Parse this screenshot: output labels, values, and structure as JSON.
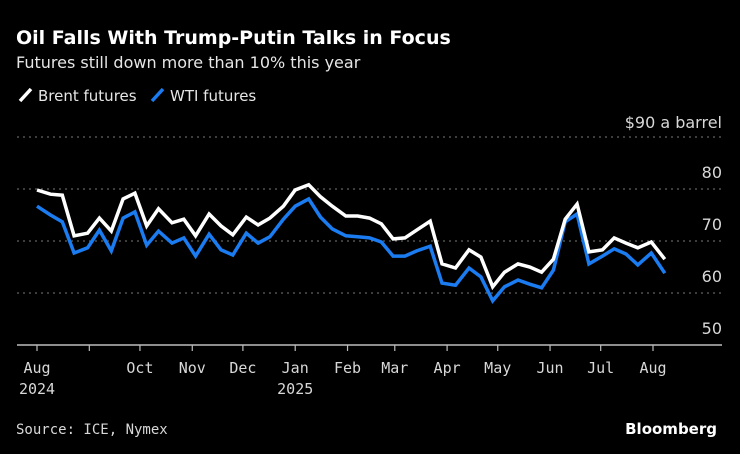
{
  "chart_data": {
    "type": "line",
    "title": "Oil Falls With Trump-Putin Talks in Focus",
    "subtitle": "Futures still down more than 10% this year",
    "ylabel": "$90 a barrel",
    "ylim": [
      50,
      90
    ],
    "yticks": [
      50,
      60,
      70,
      80
    ],
    "ytick_top": 90,
    "grid": true,
    "legend_position": "top-left",
    "x_ticks": [
      {
        "date": "2024-08-01",
        "label": "Aug",
        "year": "2024"
      },
      {
        "date": "2024-09-01",
        "label": "",
        "year": ""
      },
      {
        "date": "2024-10-01",
        "label": "Oct",
        "year": ""
      },
      {
        "date": "2024-11-01",
        "label": "Nov",
        "year": ""
      },
      {
        "date": "2024-12-01",
        "label": "Dec",
        "year": ""
      },
      {
        "date": "2025-01-01",
        "label": "Jan",
        "year": "2025"
      },
      {
        "date": "2025-02-01",
        "label": "Feb",
        "year": ""
      },
      {
        "date": "2025-03-01",
        "label": "Mar",
        "year": ""
      },
      {
        "date": "2025-04-01",
        "label": "Apr",
        "year": ""
      },
      {
        "date": "2025-05-01",
        "label": "May",
        "year": ""
      },
      {
        "date": "2025-06-01",
        "label": "Jun",
        "year": ""
      },
      {
        "date": "2025-07-01",
        "label": "Jul",
        "year": ""
      },
      {
        "date": "2025-08-01",
        "label": "Aug",
        "year": ""
      }
    ],
    "x": [
      "2024-08-01",
      "2024-08-09",
      "2024-08-16",
      "2024-08-23",
      "2024-08-31",
      "2024-09-07",
      "2024-09-14",
      "2024-09-21",
      "2024-09-28",
      "2024-10-05",
      "2024-10-12",
      "2024-10-20",
      "2024-10-27",
      "2024-11-03",
      "2024-11-11",
      "2024-11-18",
      "2024-11-25",
      "2024-12-03",
      "2024-12-10",
      "2024-12-17",
      "2024-12-25",
      "2025-01-01",
      "2025-01-09",
      "2025-01-16",
      "2025-01-23",
      "2025-01-31",
      "2025-02-07",
      "2025-02-14",
      "2025-02-21",
      "2025-02-28",
      "2025-03-07",
      "2025-03-14",
      "2025-03-22",
      "2025-03-29",
      "2025-04-06",
      "2025-04-14",
      "2025-04-21",
      "2025-04-28",
      "2025-05-05",
      "2025-05-13",
      "2025-05-20",
      "2025-05-27",
      "2025-06-03",
      "2025-06-10",
      "2025-06-17",
      "2025-06-24",
      "2025-07-02",
      "2025-07-09",
      "2025-07-16",
      "2025-07-23",
      "2025-07-31",
      "2025-08-08"
    ],
    "series": [
      {
        "name": "Brent futures",
        "color": "#ffffff",
        "values": [
          79.8,
          79.0,
          78.8,
          71.0,
          71.5,
          74.4,
          71.9,
          78.1,
          79.2,
          72.9,
          76.2,
          73.5,
          74.2,
          71.0,
          75.2,
          72.9,
          71.2,
          74.6,
          73.1,
          74.4,
          76.7,
          79.8,
          80.8,
          78.5,
          76.7,
          74.8,
          74.8,
          74.4,
          73.3,
          70.4,
          70.6,
          72.1,
          73.8,
          65.6,
          64.8,
          68.3,
          66.9,
          61.2,
          64.0,
          65.6,
          65.0,
          64.0,
          66.5,
          74.2,
          77.1,
          67.9,
          68.3,
          70.6,
          69.6,
          68.7,
          69.8,
          66.5
        ]
      },
      {
        "name": "WTI futures",
        "color": "#1a7cf0",
        "values": [
          76.7,
          75.0,
          73.7,
          67.7,
          68.7,
          72.1,
          68.1,
          74.4,
          75.6,
          69.2,
          71.9,
          69.6,
          70.6,
          67.1,
          71.3,
          68.3,
          67.3,
          71.5,
          69.6,
          70.8,
          74.2,
          76.7,
          78.1,
          74.6,
          72.3,
          71.0,
          70.8,
          70.6,
          69.8,
          67.1,
          67.1,
          68.1,
          69.0,
          61.9,
          61.5,
          64.8,
          63.1,
          58.5,
          61.2,
          62.5,
          61.7,
          61.0,
          64.4,
          73.7,
          75.2,
          65.6,
          67.1,
          68.5,
          67.5,
          65.4,
          67.7,
          63.8
        ]
      }
    ],
    "source": "Source: ICE, Nymex",
    "brand": "Bloomberg"
  }
}
